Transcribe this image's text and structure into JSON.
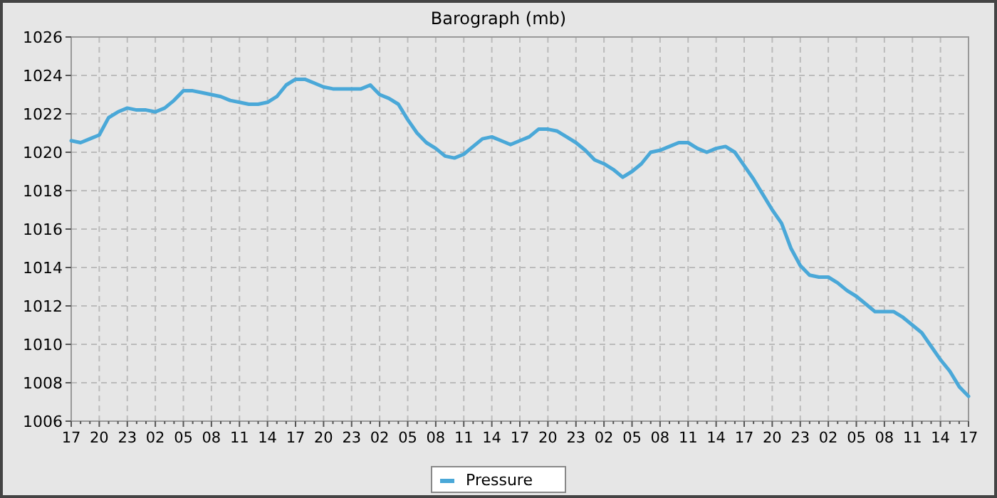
{
  "chart_data": {
    "type": "line",
    "title": "Barograph (mb)",
    "categories": [
      "17",
      null,
      null,
      "20",
      null,
      null,
      "23",
      null,
      null,
      "02",
      null,
      null,
      "05",
      null,
      null,
      "08",
      null,
      null,
      "11",
      null,
      null,
      "14",
      null,
      null,
      "17",
      null,
      null,
      "20",
      null,
      null,
      "23",
      null,
      null,
      "02",
      null,
      null,
      "05",
      null,
      null,
      "08",
      null,
      null,
      "11",
      null,
      null,
      "14",
      null,
      null,
      "17",
      null,
      null,
      "20",
      null,
      null,
      "23",
      null,
      null,
      "02",
      null,
      null,
      "05",
      null,
      null,
      "08",
      null,
      null,
      "11",
      null,
      null,
      "14",
      null,
      null,
      "17",
      null,
      null,
      "20",
      null,
      null,
      "23",
      null,
      null,
      "02",
      null,
      null,
      "05",
      null,
      null,
      "08",
      null,
      null,
      "11",
      null,
      null,
      "14",
      null,
      null,
      "17"
    ],
    "ylim": [
      1006,
      1026
    ],
    "yticks": [
      1006,
      1008,
      1010,
      1012,
      1014,
      1016,
      1018,
      1020,
      1022,
      1024,
      1026
    ],
    "grid": true,
    "legend": "bottom",
    "marker": "none",
    "line_style": "solid",
    "series": [
      {
        "name": "Pressure",
        "color": "#4aa8d8",
        "values": [
          1020.6,
          1020.5,
          1020.7,
          1020.9,
          1021.8,
          1022.1,
          1022.3,
          1022.2,
          1022.2,
          1022.1,
          1022.3,
          1022.7,
          1023.2,
          1023.2,
          1023.1,
          1023.0,
          1022.9,
          1022.7,
          1022.6,
          1022.5,
          1022.5,
          1022.6,
          1022.9,
          1023.5,
          1023.8,
          1023.8,
          1023.6,
          1023.4,
          1023.3,
          1023.3,
          1023.3,
          1023.3,
          1023.5,
          1023.0,
          1022.8,
          1022.5,
          1021.7,
          1021.0,
          1020.5,
          1020.2,
          1019.8,
          1019.7,
          1019.9,
          1020.3,
          1020.7,
          1020.8,
          1020.6,
          1020.4,
          1020.6,
          1020.8,
          1021.2,
          1021.2,
          1021.1,
          1020.8,
          1020.5,
          1020.1,
          1019.6,
          1019.4,
          1019.1,
          1018.7,
          1019.0,
          1019.4,
          1020.0,
          1020.1,
          1020.3,
          1020.5,
          1020.5,
          1020.2,
          1020.0,
          1020.2,
          1020.3,
          1020.0,
          1019.3,
          1018.6,
          1017.8,
          1017.0,
          1016.3,
          1015.0,
          1014.1,
          1013.6,
          1013.5,
          1013.5,
          1013.2,
          1012.8,
          1012.5,
          1012.1,
          1011.7,
          1011.7,
          1011.7,
          1011.4,
          1011.0,
          1010.6,
          1009.9,
          1009.2,
          1008.6,
          1007.8,
          1007.3
        ]
      }
    ]
  }
}
